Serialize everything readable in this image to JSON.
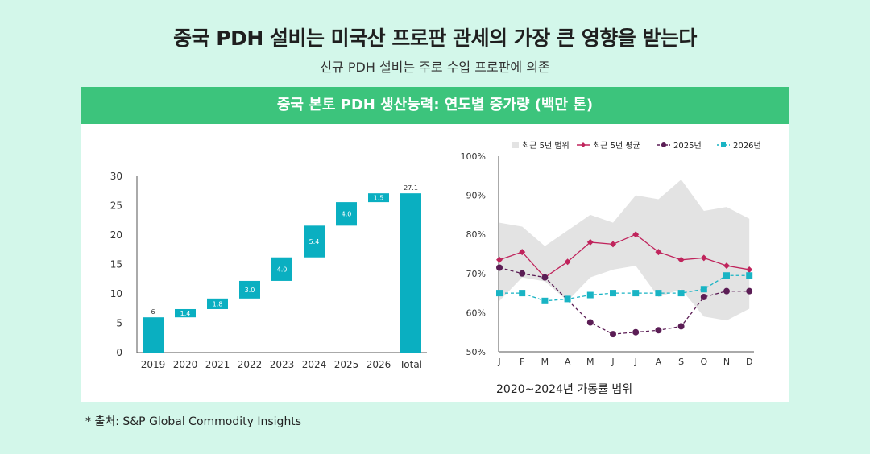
{
  "header": {
    "title": "중국 PDH 설비는 미국산 프로판 관세의 가장 큰 영향을 받는다",
    "subtitle": "신규 PDH 설비는 주로 수입 프로판에 의존"
  },
  "panel": {
    "title": "중국 본토 PDH 생산능력: 연도별 증가량 (백만 톤)"
  },
  "source": "* 출처: S&P Global Commodity Insights",
  "colors": {
    "background": "#d3f7ea",
    "header_green": "#3cc47c",
    "bar_teal": "#0aafc1",
    "range_gray": "#e3e3e3",
    "avg_crimson": "#c0245c",
    "y2025_purple": "#5b1d55",
    "y2026_teal": "#19b4c4"
  },
  "chart_data": [
    {
      "type": "bar",
      "subtype": "waterfall",
      "categories": [
        "2019",
        "2020",
        "2021",
        "2022",
        "2023",
        "2024",
        "2025",
        "2026",
        "Total"
      ],
      "values": [
        6,
        1.4,
        1.8,
        3.0,
        4.0,
        5.4,
        4.0,
        1.5,
        27.1
      ],
      "labels": [
        "6",
        "1.4",
        "1.8",
        "3.0",
        "4.0",
        "5.4",
        "4.0",
        "1.5",
        "27.1"
      ],
      "ylim": [
        0,
        30
      ],
      "yticks": [
        "0",
        "5",
        "10",
        "15",
        "20",
        "25",
        "30"
      ],
      "yticks_values": [
        0,
        5,
        10,
        15,
        20,
        25,
        30
      ]
    },
    {
      "type": "line",
      "caption": "2020~2024년 가동률 범위",
      "x": [
        "J",
        "F",
        "M",
        "A",
        "M",
        "J",
        "J",
        "A",
        "S",
        "O",
        "N",
        "D"
      ],
      "ylim": [
        50,
        100
      ],
      "yticks": [
        "50%",
        "60%",
        "70%",
        "80%",
        "90%",
        "100%"
      ],
      "yticks_values": [
        50,
        60,
        70,
        80,
        90,
        100
      ],
      "legend": [
        "최근 5년 범위",
        "최근 5년 평균",
        "2025년",
        "2026년"
      ],
      "range": {
        "name": "최근 5년 범위",
        "upper": [
          83,
          82,
          77,
          81,
          85,
          83,
          90,
          89,
          94,
          86,
          87,
          84
        ],
        "lower": [
          63,
          69,
          68,
          63,
          69,
          71,
          72,
          64,
          66,
          59,
          58,
          61
        ]
      },
      "series": [
        {
          "name": "최근 5년 평균",
          "values": [
            73.5,
            75.5,
            69,
            73,
            78,
            77.5,
            80,
            75.5,
            73.5,
            74,
            72,
            71
          ]
        },
        {
          "name": "2025년",
          "values": [
            71.5,
            70,
            69,
            null,
            57.5,
            54.5,
            55,
            55.5,
            56.5,
            64,
            65.5,
            65.5
          ]
        },
        {
          "name": "2026년",
          "values": [
            65,
            65,
            63,
            63.5,
            64.5,
            65,
            65,
            65,
            65,
            66,
            69.5,
            69.5
          ]
        }
      ]
    }
  ]
}
